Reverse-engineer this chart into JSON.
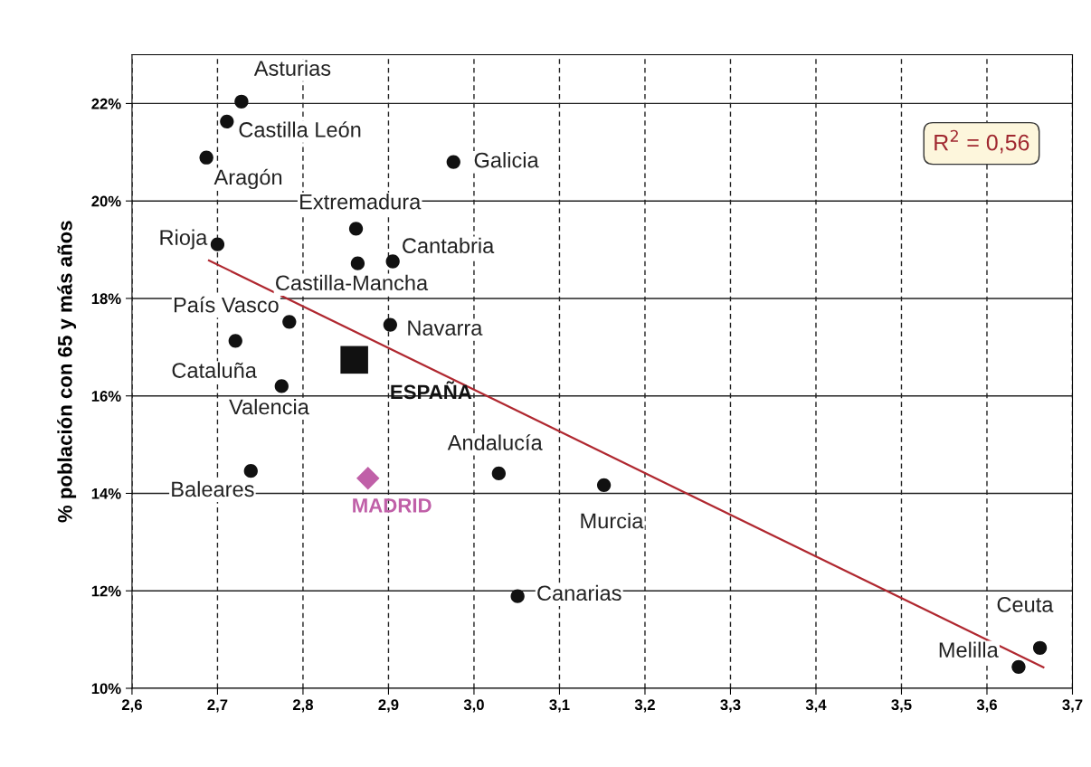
{
  "chart_data": {
    "type": "scatter",
    "ylabel": "% población con 65 y más años",
    "xlim": [
      2.6,
      3.7
    ],
    "xticks": [
      {
        "value": 2.6,
        "label": "2,6"
      },
      {
        "value": 2.7,
        "label": "2,7"
      },
      {
        "value": 2.8,
        "label": "2,8"
      },
      {
        "value": 2.9,
        "label": "2,9"
      },
      {
        "value": 3.0,
        "label": "3,0"
      },
      {
        "value": 3.1,
        "label": "3,1"
      },
      {
        "value": 3.2,
        "label": "3,2"
      },
      {
        "value": 3.3,
        "label": "3,3"
      },
      {
        "value": 3.4,
        "label": "3,4"
      },
      {
        "value": 3.5,
        "label": "3,5"
      },
      {
        "value": 3.6,
        "label": "3,6"
      },
      {
        "value": 3.7,
        "label": "3,7"
      }
    ],
    "ylim": [
      10,
      23
    ],
    "yticks": [
      {
        "value": 10,
        "label": "10%"
      },
      {
        "value": 12,
        "label": "12%"
      },
      {
        "value": 14,
        "label": "14%"
      },
      {
        "value": 16,
        "label": "16%"
      },
      {
        "value": 18,
        "label": "18%"
      },
      {
        "value": 20,
        "label": "20%"
      },
      {
        "value": 22,
        "label": "22%"
      }
    ],
    "grid": true,
    "series": [
      {
        "color": "#111111",
        "marker": "circle",
        "x": [
          2.728,
          2.711,
          2.687,
          2.976,
          2.862,
          2.7,
          2.864,
          2.905,
          2.784,
          2.902,
          2.721,
          2.775,
          2.739,
          3.029,
          3.152,
          3.051,
          3.662,
          3.637
        ],
        "values": [
          22.04,
          21.63,
          20.89,
          20.8,
          19.43,
          19.11,
          18.72,
          18.76,
          17.52,
          17.46,
          17.13,
          16.2,
          14.46,
          14.41,
          14.17,
          11.89,
          10.83,
          10.44
        ]
      },
      {
        "type": "scatter",
        "name": "ESPAÑA",
        "color": "#111111",
        "marker": "square",
        "x": [
          2.86
        ],
        "values": [
          16.74
        ]
      },
      {
        "type": "scatter",
        "name": "MADRID",
        "color": "#c060a8",
        "marker": "diamond",
        "x": [
          2.876
        ],
        "values": [
          14.31
        ]
      },
      {
        "type": "line",
        "color": "#b02830",
        "x": [
          2.69,
          3.666
        ],
        "values": [
          18.78,
          10.43
        ]
      }
    ],
    "annotations": [
      {
        "text": "Asturias",
        "x": 2.728,
        "y": 22.04
      },
      {
        "text": "Castilla León",
        "x": 2.711,
        "y": 21.63
      },
      {
        "text": "Aragón",
        "x": 2.687,
        "y": 20.89
      },
      {
        "text": "Galicia",
        "x": 2.976,
        "y": 20.8
      },
      {
        "text": "Extremadura",
        "x": 2.862,
        "y": 19.43
      },
      {
        "text": "Rioja",
        "x": 2.7,
        "y": 19.11
      },
      {
        "text": "Castilla-Mancha",
        "x": 2.864,
        "y": 18.72
      },
      {
        "text": "Cantabria",
        "x": 2.905,
        "y": 18.76
      },
      {
        "text": "País Vasco",
        "x": 2.784,
        "y": 17.52
      },
      {
        "text": "Navarra",
        "x": 2.902,
        "y": 17.46
      },
      {
        "text": "Cataluña",
        "x": 2.721,
        "y": 17.13
      },
      {
        "text": "Valencia",
        "x": 2.775,
        "y": 16.2
      },
      {
        "text": "Baleares",
        "x": 2.739,
        "y": 14.46
      },
      {
        "text": "Andalucía",
        "x": 3.029,
        "y": 14.41
      },
      {
        "text": "Murcia",
        "x": 3.152,
        "y": 14.17
      },
      {
        "text": "Canarias",
        "x": 3.051,
        "y": 11.89
      },
      {
        "text": "Ceuta",
        "x": 3.662,
        "y": 10.83
      },
      {
        "text": "Melilla",
        "x": 3.637,
        "y": 10.44
      },
      "R$^{2}$ = 0,56"
    ]
  }
}
